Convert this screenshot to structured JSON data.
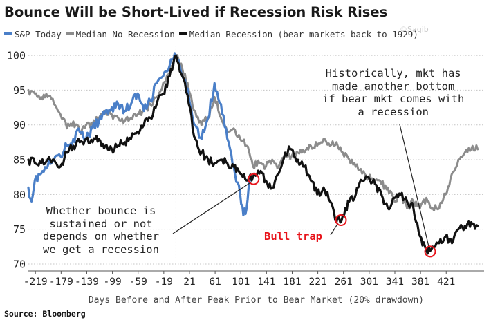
{
  "chart_data": {
    "type": "line",
    "title": "Bounce Will be Short-Lived if Recession Risk Rises",
    "xlabel": "Days Before and After Peak Prior to Bear Market (20% drawdown)",
    "ylabel": "",
    "xlim": [
      -230,
      480
    ],
    "ylim": [
      69,
      101
    ],
    "x_ticks": [
      -219,
      -179,
      -139,
      -99,
      -59,
      -19,
      21,
      61,
      101,
      141,
      181,
      221,
      261,
      301,
      341,
      381,
      421
    ],
    "x_tick_labels": [
      "-219",
      "-179",
      "-139",
      "-99",
      "-59",
      "-19",
      "21",
      "61",
      "101",
      "141",
      "181",
      "221",
      "261",
      "301",
      "341",
      "381",
      "421"
    ],
    "y_ticks": [
      70,
      75,
      80,
      85,
      90,
      95,
      100
    ],
    "y_tick_labels": [
      "70",
      "75",
      "80",
      "85",
      "90",
      "95",
      "100"
    ],
    "grid": "horizontal dotted",
    "legend_position": "top-left",
    "series": [
      {
        "name": "S&P Today",
        "color": "#4a7fc8",
        "points": [
          [
            -230,
            81
          ],
          [
            -225,
            79
          ],
          [
            -220,
            82
          ],
          [
            -210,
            83
          ],
          [
            -200,
            84
          ],
          [
            -190,
            85
          ],
          [
            -180,
            85.5
          ],
          [
            -170,
            87
          ],
          [
            -160,
            88
          ],
          [
            -150,
            89
          ],
          [
            -140,
            88
          ],
          [
            -130,
            89.5
          ],
          [
            -120,
            90.5
          ],
          [
            -110,
            92
          ],
          [
            -100,
            92.5
          ],
          [
            -90,
            93
          ],
          [
            -80,
            92
          ],
          [
            -70,
            93
          ],
          [
            -60,
            94.5
          ],
          [
            -50,
            92
          ],
          [
            -40,
            93.5
          ],
          [
            -30,
            96
          ],
          [
            -20,
            97
          ],
          [
            -10,
            98.5
          ],
          [
            0,
            100
          ],
          [
            10,
            97
          ],
          [
            20,
            94
          ],
          [
            30,
            90
          ],
          [
            40,
            88
          ],
          [
            50,
            91
          ],
          [
            60,
            96
          ],
          [
            70,
            93
          ],
          [
            80,
            88
          ],
          [
            90,
            84
          ],
          [
            100,
            80
          ],
          [
            105,
            77
          ],
          [
            110,
            78
          ],
          [
            115,
            82
          ]
        ]
      },
      {
        "name": "Median No Recession",
        "color": "#8c8c8c",
        "points": [
          [
            -230,
            95
          ],
          [
            -220,
            94.5
          ],
          [
            -210,
            94
          ],
          [
            -200,
            94
          ],
          [
            -190,
            93
          ],
          [
            -180,
            91.5
          ],
          [
            -170,
            89.5
          ],
          [
            -160,
            90.5
          ],
          [
            -150,
            89
          ],
          [
            -140,
            90
          ],
          [
            -130,
            90
          ],
          [
            -120,
            91
          ],
          [
            -110,
            92
          ],
          [
            -100,
            91.5
          ],
          [
            -90,
            91
          ],
          [
            -80,
            90.5
          ],
          [
            -70,
            91
          ],
          [
            -60,
            91.5
          ],
          [
            -50,
            92
          ],
          [
            -40,
            93
          ],
          [
            -30,
            94
          ],
          [
            -20,
            96
          ],
          [
            -10,
            97.5
          ],
          [
            0,
            100
          ],
          [
            10,
            98
          ],
          [
            20,
            95
          ],
          [
            30,
            92
          ],
          [
            40,
            90
          ],
          [
            50,
            91
          ],
          [
            60,
            94
          ],
          [
            70,
            91
          ],
          [
            80,
            89
          ],
          [
            90,
            89.5
          ],
          [
            100,
            88
          ],
          [
            110,
            87
          ],
          [
            120,
            84
          ],
          [
            130,
            84.5
          ],
          [
            140,
            84
          ],
          [
            150,
            85
          ],
          [
            160,
            84
          ],
          [
            170,
            86
          ],
          [
            180,
            85.5
          ],
          [
            190,
            86
          ],
          [
            200,
            86
          ],
          [
            210,
            87
          ],
          [
            220,
            87
          ],
          [
            230,
            88
          ],
          [
            240,
            87
          ],
          [
            250,
            87.5
          ],
          [
            260,
            86
          ],
          [
            270,
            85
          ],
          [
            280,
            84
          ],
          [
            290,
            83
          ],
          [
            300,
            82.5
          ],
          [
            310,
            82
          ],
          [
            320,
            81.5
          ],
          [
            330,
            81
          ],
          [
            340,
            79
          ],
          [
            350,
            80
          ],
          [
            360,
            78
          ],
          [
            370,
            79
          ],
          [
            380,
            78
          ],
          [
            390,
            79.5
          ],
          [
            400,
            78
          ],
          [
            410,
            78
          ],
          [
            420,
            80
          ],
          [
            430,
            83
          ],
          [
            440,
            85
          ],
          [
            450,
            86
          ],
          [
            460,
            86.5
          ],
          [
            470,
            86.5
          ]
        ]
      },
      {
        "name": "Median Recession (bear markets back to 1929)",
        "color": "#111111",
        "points": [
          [
            -230,
            85
          ],
          [
            -220,
            84.5
          ],
          [
            -210,
            84.5
          ],
          [
            -200,
            85
          ],
          [
            -190,
            85
          ],
          [
            -180,
            84
          ],
          [
            -170,
            86
          ],
          [
            -160,
            87
          ],
          [
            -150,
            87.5
          ],
          [
            -140,
            88
          ],
          [
            -130,
            87.5
          ],
          [
            -120,
            88
          ],
          [
            -110,
            87
          ],
          [
            -100,
            86.5
          ],
          [
            -90,
            87
          ],
          [
            -80,
            87.5
          ],
          [
            -70,
            88
          ],
          [
            -60,
            89
          ],
          [
            -50,
            90
          ],
          [
            -40,
            91
          ],
          [
            -30,
            93
          ],
          [
            -20,
            94.5
          ],
          [
            -10,
            97
          ],
          [
            0,
            100
          ],
          [
            10,
            97
          ],
          [
            20,
            93
          ],
          [
            30,
            88
          ],
          [
            40,
            86
          ],
          [
            50,
            85
          ],
          [
            60,
            84.5
          ],
          [
            70,
            85
          ],
          [
            80,
            84.5
          ],
          [
            90,
            84
          ],
          [
            100,
            83
          ],
          [
            110,
            82
          ],
          [
            120,
            82.5
          ],
          [
            130,
            83
          ],
          [
            140,
            82
          ],
          [
            150,
            81
          ],
          [
            160,
            83
          ],
          [
            170,
            86
          ],
          [
            180,
            86.5
          ],
          [
            190,
            85
          ],
          [
            200,
            84
          ],
          [
            210,
            82
          ],
          [
            220,
            80
          ],
          [
            230,
            81
          ],
          [
            240,
            79
          ],
          [
            250,
            76
          ],
          [
            260,
            77
          ],
          [
            270,
            79
          ],
          [
            280,
            80
          ],
          [
            290,
            82
          ],
          [
            300,
            82.5
          ],
          [
            310,
            81.5
          ],
          [
            320,
            80
          ],
          [
            330,
            78
          ],
          [
            340,
            79.5
          ],
          [
            350,
            80
          ],
          [
            360,
            79
          ],
          [
            370,
            78
          ],
          [
            380,
            74
          ],
          [
            390,
            72
          ],
          [
            400,
            72.5
          ],
          [
            410,
            73
          ],
          [
            420,
            74
          ],
          [
            430,
            73
          ],
          [
            440,
            75
          ],
          [
            450,
            75.5
          ],
          [
            460,
            76
          ],
          [
            470,
            75.5
          ]
        ]
      }
    ],
    "highlight_points": [
      {
        "x": 121,
        "y": 82.2
      },
      {
        "x": 257,
        "y": 76.3
      },
      {
        "x": 396,
        "y": 71.8
      }
    ],
    "peak_marker_x": 0,
    "annotations": {
      "left_note": "Whether bounce is\nsustained or not\ndepends on whether\nwe get a recession",
      "bull_trap": "Bull trap",
      "right_note": "Historically, mkt has\nmade another bottom\nif bear mkt comes with\na recession"
    },
    "source": "Source: Bloomberg",
    "watermark": "©Saqib"
  }
}
